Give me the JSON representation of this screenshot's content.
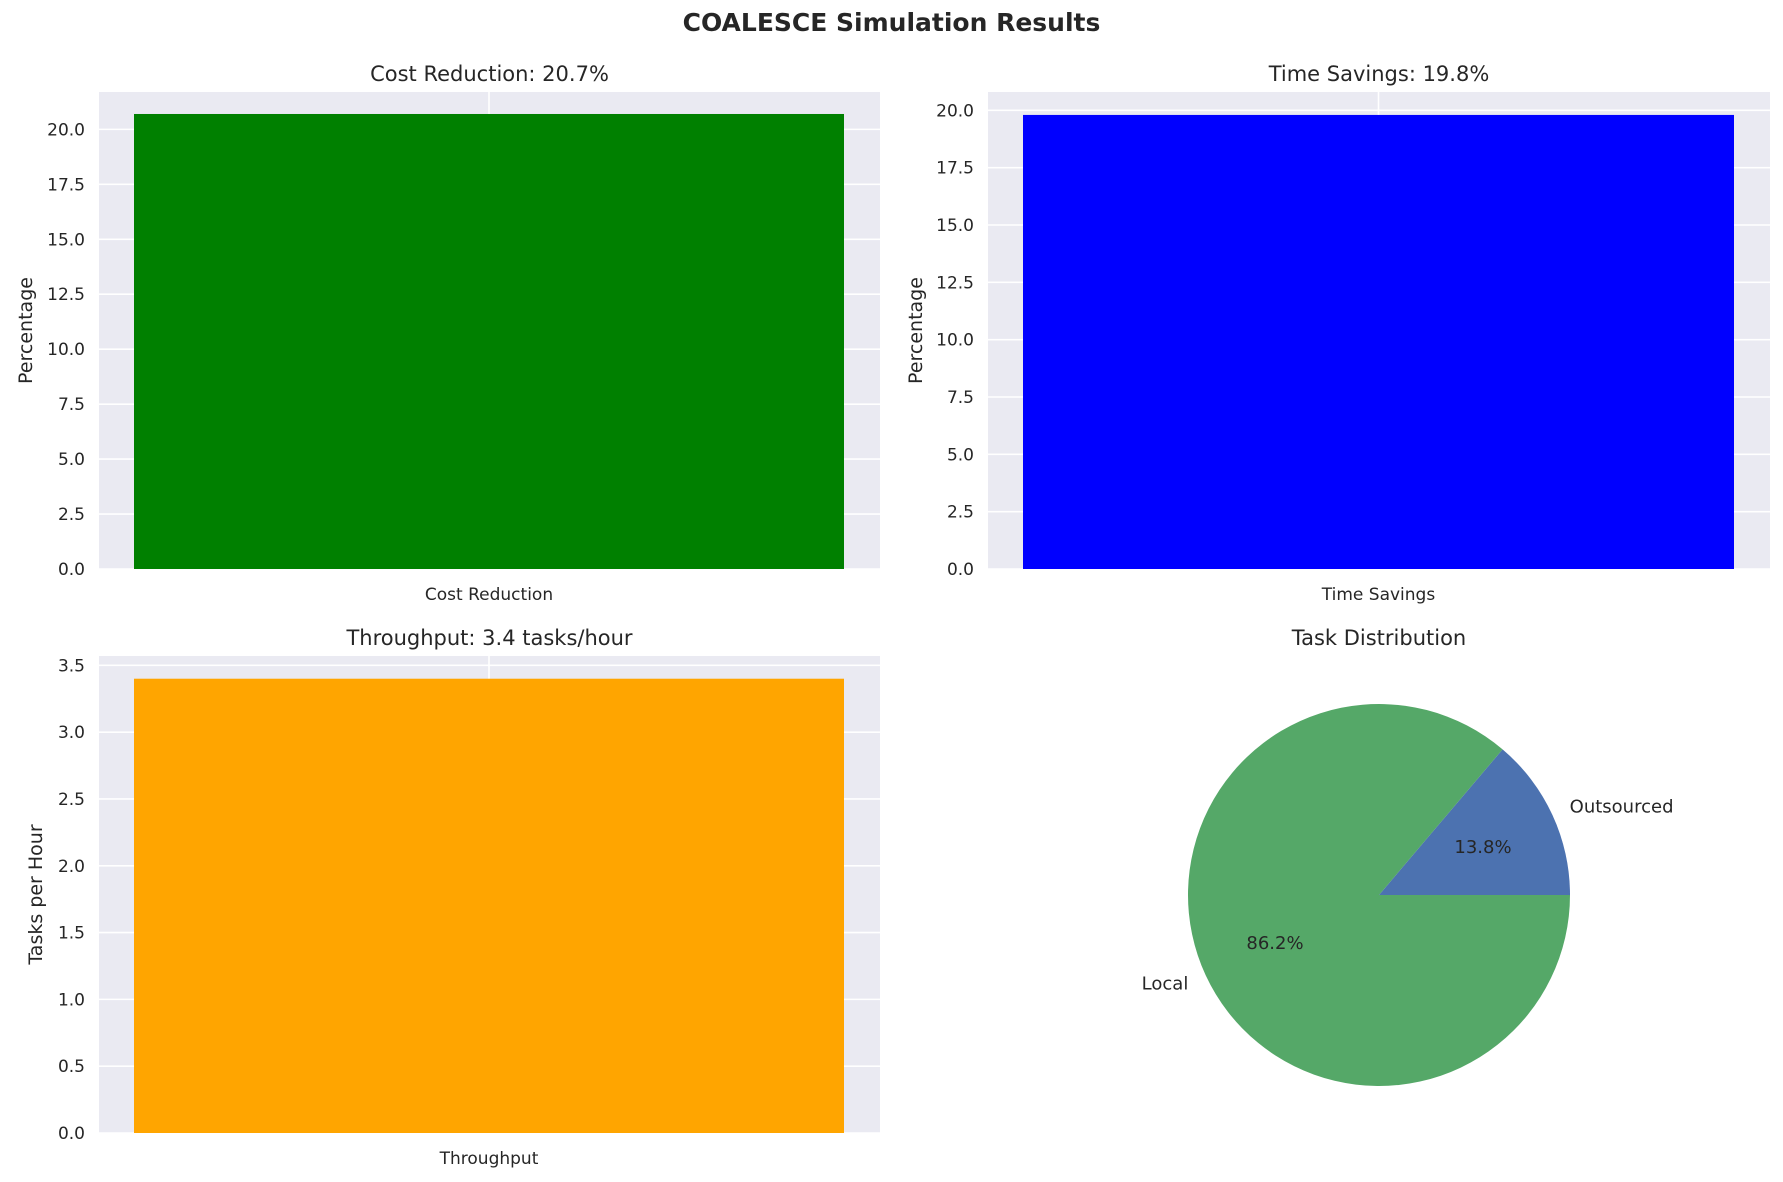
{
  "figure": {
    "title": "COALESCE Simulation Results"
  },
  "colors": {
    "axes_bg": "#EAEAF2",
    "grid": "#FFFFFF"
  },
  "chart_data": [
    {
      "type": "bar",
      "title": "Cost Reduction: 20.7%",
      "categories": [
        "Cost Reduction"
      ],
      "values": [
        20.7
      ],
      "color": "#008000",
      "xlabel": "",
      "ylabel": "Percentage",
      "ylim": [
        0,
        21.7
      ],
      "yticks": [
        0.0,
        2.5,
        5.0,
        7.5,
        10.0,
        12.5,
        15.0,
        17.5,
        20.0
      ],
      "grid": true
    },
    {
      "type": "bar",
      "title": "Time Savings: 19.8%",
      "categories": [
        "Time Savings"
      ],
      "values": [
        19.8
      ],
      "color": "#0000FF",
      "xlabel": "",
      "ylabel": "Percentage",
      "ylim": [
        0,
        20.8
      ],
      "yticks": [
        0.0,
        2.5,
        5.0,
        7.5,
        10.0,
        12.5,
        15.0,
        17.5,
        20.0
      ],
      "grid": true
    },
    {
      "type": "bar",
      "title": "Throughput: 3.4 tasks/hour",
      "categories": [
        "Throughput"
      ],
      "values": [
        3.4
      ],
      "color": "#FFA500",
      "xlabel": "",
      "ylabel": "Tasks per Hour",
      "ylim": [
        0,
        3.57
      ],
      "yticks": [
        0.0,
        0.5,
        1.0,
        1.5,
        2.0,
        2.5,
        3.0,
        3.5
      ],
      "grid": true
    },
    {
      "type": "pie",
      "title": "Task Distribution",
      "labels": [
        "Outsourced",
        "Local"
      ],
      "values": [
        13.8,
        86.2
      ],
      "value_labels": [
        "13.8%",
        "86.2%"
      ],
      "colors": [
        "#4C72B0",
        "#55A868"
      ],
      "start_angle": 0
    }
  ]
}
